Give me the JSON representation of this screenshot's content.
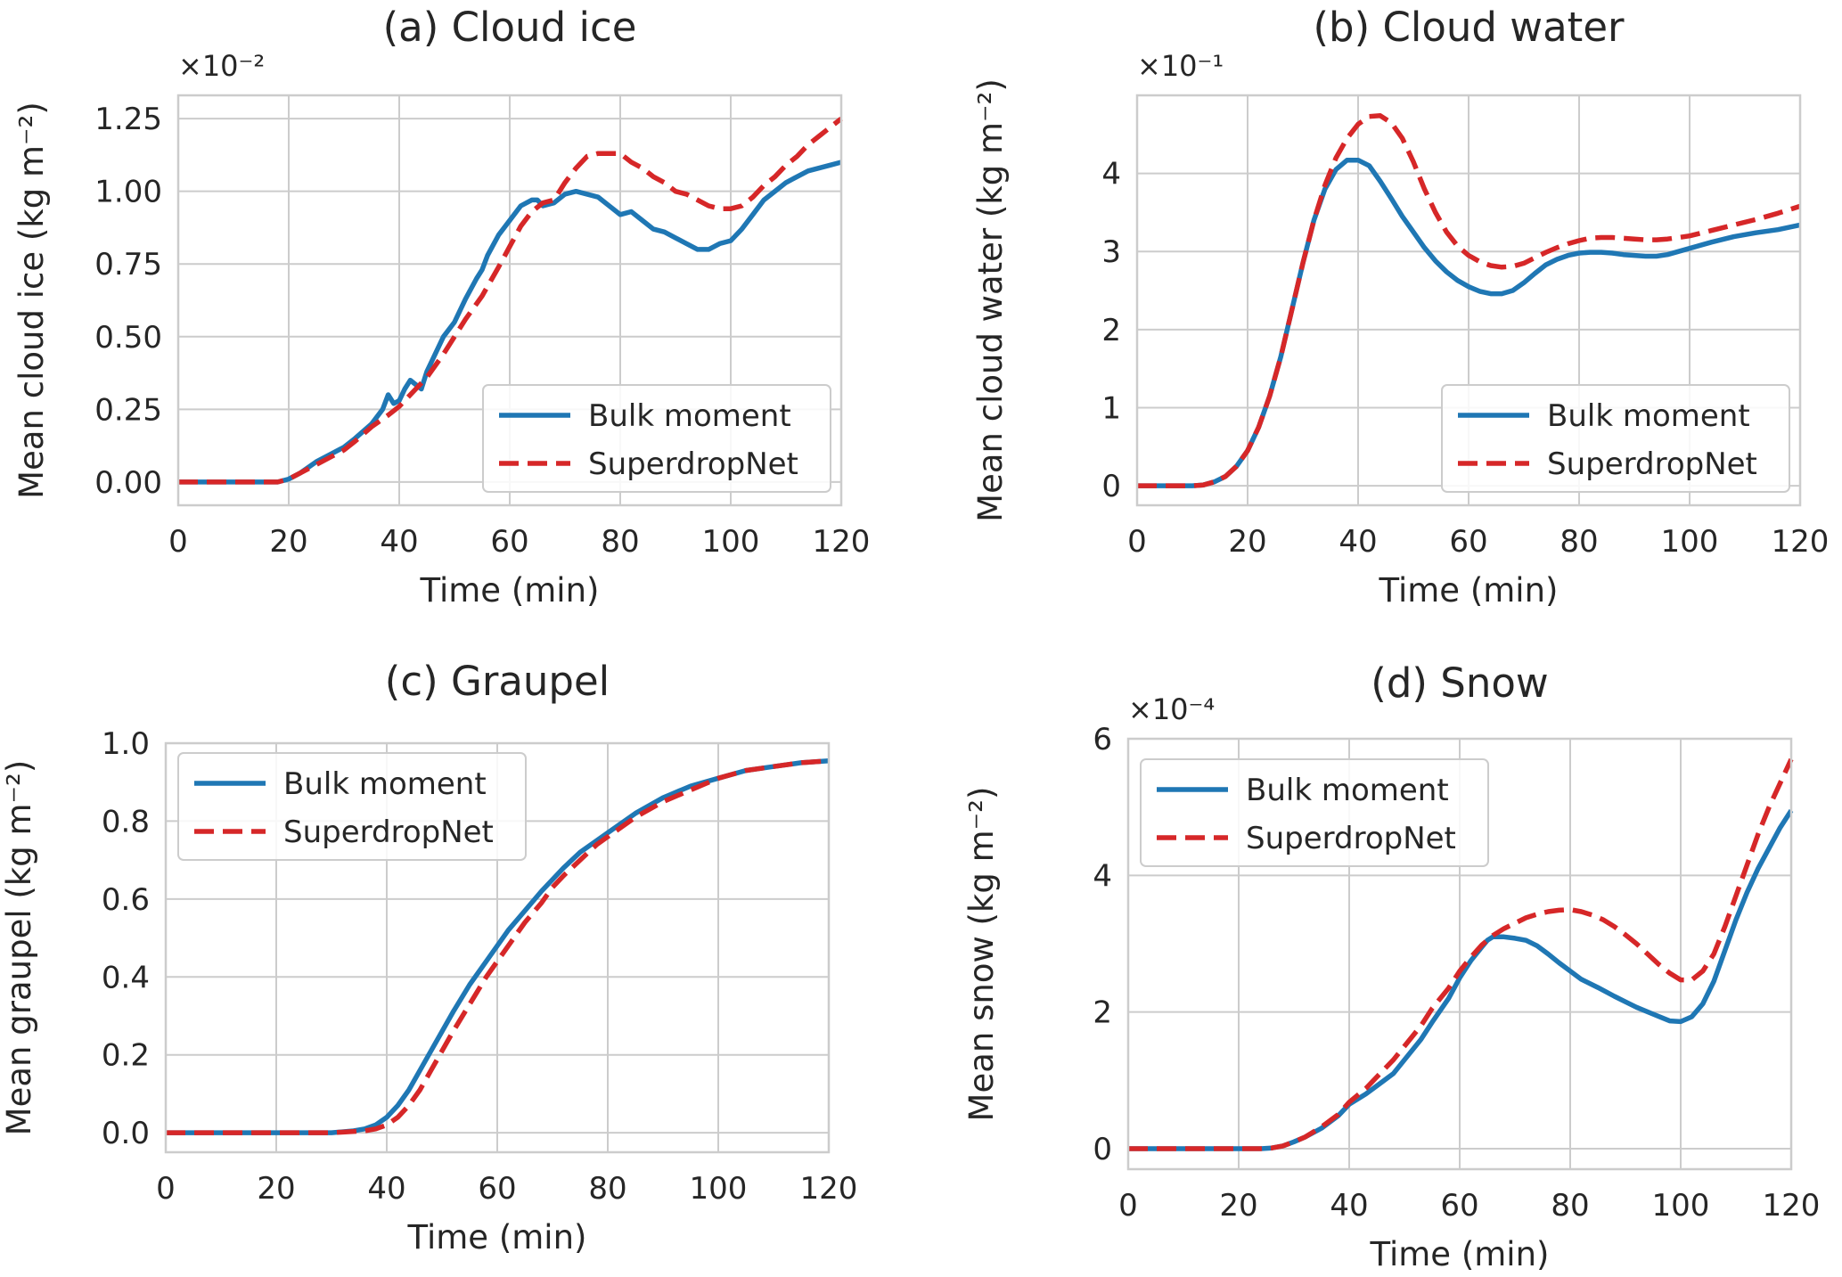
{
  "chart_data": [
    {
      "type": "line",
      "title": "(a) Cloud ice",
      "xlabel": "Time (min)",
      "ylabel": "Mean cloud ice (kg m⁻²)",
      "exponent_label": "×10⁻²",
      "xlim": [
        0,
        120
      ],
      "ylim": [
        -0.08,
        1.33
      ],
      "xticks": [
        0,
        20,
        40,
        60,
        80,
        100,
        120
      ],
      "xtick_labels": [
        "0",
        "20",
        "40",
        "60",
        "80",
        "100",
        "120"
      ],
      "yticks": [
        0,
        0.25,
        0.5,
        0.75,
        1.0,
        1.25
      ],
      "ytick_labels": [
        "0.00",
        "0.25",
        "0.50",
        "0.75",
        "1.00",
        "1.25"
      ],
      "grid": true,
      "legend_position": "lower-right",
      "series": [
        {
          "name": "Bulk moment",
          "style": "solid",
          "color": "#1f77b4",
          "x": [
            0,
            10,
            18,
            20,
            22,
            25,
            28,
            30,
            32,
            35,
            37,
            38,
            39,
            40,
            41,
            42,
            44,
            45,
            46,
            48,
            50,
            52,
            54,
            55,
            56,
            58,
            60,
            62,
            64,
            65,
            66,
            68,
            70,
            72,
            74,
            76,
            78,
            80,
            82,
            84,
            86,
            88,
            90,
            92,
            94,
            96,
            98,
            100,
            102,
            104,
            106,
            108,
            110,
            112,
            114,
            116,
            118,
            120
          ],
          "y": [
            0,
            0,
            0,
            0.01,
            0.03,
            0.07,
            0.1,
            0.12,
            0.15,
            0.2,
            0.25,
            0.3,
            0.27,
            0.28,
            0.32,
            0.35,
            0.32,
            0.38,
            0.42,
            0.5,
            0.55,
            0.63,
            0.7,
            0.73,
            0.78,
            0.85,
            0.9,
            0.95,
            0.97,
            0.97,
            0.95,
            0.96,
            0.99,
            1.0,
            0.99,
            0.98,
            0.95,
            0.92,
            0.93,
            0.9,
            0.87,
            0.86,
            0.84,
            0.82,
            0.8,
            0.8,
            0.82,
            0.83,
            0.87,
            0.92,
            0.97,
            1.0,
            1.03,
            1.05,
            1.07,
            1.08,
            1.09,
            1.1
          ]
        },
        {
          "name": "SuperdropNet",
          "style": "dashed",
          "color": "#d62728",
          "x": [
            0,
            10,
            18,
            20,
            22,
            25,
            28,
            30,
            32,
            35,
            38,
            40,
            42,
            45,
            48,
            50,
            52,
            55,
            58,
            60,
            62,
            64,
            66,
            68,
            70,
            72,
            74,
            76,
            78,
            80,
            82,
            84,
            86,
            88,
            90,
            92,
            94,
            96,
            98,
            100,
            102,
            104,
            106,
            108,
            110,
            112,
            114,
            116,
            118,
            120
          ],
          "y": [
            0,
            0,
            0,
            0.01,
            0.03,
            0.06,
            0.09,
            0.11,
            0.14,
            0.19,
            0.23,
            0.26,
            0.3,
            0.36,
            0.44,
            0.5,
            0.56,
            0.64,
            0.74,
            0.81,
            0.88,
            0.93,
            0.96,
            0.97,
            1.03,
            1.08,
            1.12,
            1.13,
            1.13,
            1.13,
            1.1,
            1.08,
            1.05,
            1.03,
            1.0,
            0.99,
            0.97,
            0.95,
            0.94,
            0.94,
            0.95,
            0.98,
            1.02,
            1.05,
            1.09,
            1.12,
            1.16,
            1.19,
            1.22,
            1.25
          ]
        }
      ]
    },
    {
      "type": "line",
      "title": "(b) Cloud water",
      "xlabel": "Time (min)",
      "ylabel": "Mean cloud water (kg m⁻²)",
      "exponent_label": "×10⁻¹",
      "xlim": [
        0,
        120
      ],
      "ylim": [
        -0.25,
        5.0
      ],
      "xticks": [
        0,
        20,
        40,
        60,
        80,
        100,
        120
      ],
      "xtick_labels": [
        "0",
        "20",
        "40",
        "60",
        "80",
        "100",
        "120"
      ],
      "yticks": [
        0,
        1,
        2,
        3,
        4
      ],
      "ytick_labels": [
        "0",
        "1",
        "2",
        "3",
        "4"
      ],
      "grid": true,
      "legend_position": "lower-right",
      "series": [
        {
          "name": "Bulk moment",
          "style": "solid",
          "color": "#1f77b4",
          "x": [
            0,
            10,
            12,
            14,
            16,
            18,
            20,
            22,
            24,
            26,
            28,
            30,
            32,
            34,
            36,
            38,
            40,
            42,
            44,
            46,
            48,
            50,
            52,
            54,
            56,
            58,
            60,
            62,
            64,
            66,
            68,
            70,
            72,
            74,
            76,
            78,
            80,
            82,
            84,
            86,
            88,
            90,
            92,
            94,
            96,
            98,
            100,
            104,
            108,
            112,
            116,
            120
          ],
          "y": [
            0,
            0,
            0.01,
            0.05,
            0.12,
            0.25,
            0.45,
            0.75,
            1.15,
            1.65,
            2.25,
            2.85,
            3.4,
            3.8,
            4.05,
            4.17,
            4.17,
            4.1,
            3.9,
            3.68,
            3.45,
            3.25,
            3.05,
            2.88,
            2.74,
            2.63,
            2.55,
            2.49,
            2.46,
            2.46,
            2.5,
            2.6,
            2.72,
            2.83,
            2.9,
            2.95,
            2.98,
            2.99,
            2.99,
            2.98,
            2.96,
            2.95,
            2.94,
            2.94,
            2.96,
            3.0,
            3.04,
            3.12,
            3.19,
            3.24,
            3.28,
            3.34
          ]
        },
        {
          "name": "SuperdropNet",
          "style": "dashed",
          "color": "#d62728",
          "x": [
            0,
            10,
            12,
            14,
            16,
            18,
            20,
            22,
            24,
            26,
            28,
            30,
            32,
            34,
            36,
            38,
            40,
            42,
            44,
            46,
            48,
            50,
            52,
            54,
            56,
            58,
            60,
            62,
            64,
            66,
            68,
            70,
            72,
            74,
            76,
            78,
            80,
            82,
            84,
            86,
            88,
            90,
            92,
            94,
            96,
            98,
            100,
            104,
            108,
            112,
            116,
            120
          ],
          "y": [
            0,
            0,
            0.01,
            0.05,
            0.12,
            0.25,
            0.45,
            0.75,
            1.15,
            1.65,
            2.25,
            2.85,
            3.4,
            3.85,
            4.2,
            4.45,
            4.63,
            4.73,
            4.74,
            4.65,
            4.45,
            4.15,
            3.8,
            3.5,
            3.25,
            3.07,
            2.95,
            2.87,
            2.82,
            2.8,
            2.81,
            2.85,
            2.92,
            2.99,
            3.05,
            3.1,
            3.14,
            3.17,
            3.18,
            3.18,
            3.17,
            3.16,
            3.15,
            3.15,
            3.16,
            3.18,
            3.2,
            3.27,
            3.34,
            3.41,
            3.49,
            3.58
          ]
        }
      ]
    },
    {
      "type": "line",
      "title": "(c) Graupel",
      "xlabel": "Time (min)",
      "ylabel": "Mean graupel (kg m⁻²)",
      "exponent_label": "",
      "xlim": [
        0,
        120
      ],
      "ylim": [
        -0.05,
        1.0
      ],
      "xticks": [
        0,
        20,
        40,
        60,
        80,
        100,
        120
      ],
      "xtick_labels": [
        "0",
        "20",
        "40",
        "60",
        "80",
        "100",
        "120"
      ],
      "yticks": [
        0,
        0.2,
        0.4,
        0.6,
        0.8,
        1.0
      ],
      "ytick_labels": [
        "0.0",
        "0.2",
        "0.4",
        "0.6",
        "0.8",
        "1.0"
      ],
      "grid": true,
      "legend_position": "upper-left",
      "series": [
        {
          "name": "Bulk moment",
          "style": "solid",
          "color": "#1f77b4",
          "x": [
            0,
            30,
            34,
            36,
            38,
            40,
            42,
            44,
            46,
            48,
            50,
            52,
            55,
            58,
            60,
            62,
            65,
            68,
            70,
            72,
            75,
            78,
            80,
            85,
            90,
            95,
            100,
            105,
            110,
            115,
            120
          ],
          "y": [
            0,
            0,
            0.005,
            0.01,
            0.02,
            0.04,
            0.07,
            0.11,
            0.16,
            0.21,
            0.26,
            0.31,
            0.38,
            0.44,
            0.48,
            0.52,
            0.57,
            0.62,
            0.65,
            0.68,
            0.72,
            0.75,
            0.77,
            0.82,
            0.86,
            0.89,
            0.91,
            0.93,
            0.94,
            0.95,
            0.955
          ]
        },
        {
          "name": "SuperdropNet",
          "style": "dashed",
          "color": "#d62728",
          "x": [
            0,
            30,
            36,
            38,
            40,
            42,
            44,
            46,
            48,
            50,
            52,
            55,
            58,
            60,
            62,
            65,
            68,
            70,
            72,
            75,
            78,
            80,
            85,
            90,
            95,
            100,
            105,
            110,
            115,
            120
          ],
          "y": [
            0,
            0,
            0.005,
            0.01,
            0.02,
            0.04,
            0.07,
            0.11,
            0.16,
            0.21,
            0.26,
            0.33,
            0.4,
            0.44,
            0.48,
            0.54,
            0.59,
            0.63,
            0.66,
            0.7,
            0.74,
            0.76,
            0.81,
            0.85,
            0.88,
            0.91,
            0.93,
            0.94,
            0.95,
            0.955
          ]
        }
      ]
    },
    {
      "type": "line",
      "title": "(d) Snow",
      "xlabel": "Time (min)",
      "ylabel": "Mean snow (kg m⁻²)",
      "exponent_label": "×10⁻⁴",
      "xlim": [
        0,
        120
      ],
      "ylim": [
        -0.3,
        6.0
      ],
      "xticks": [
        0,
        20,
        40,
        60,
        80,
        100,
        120
      ],
      "xtick_labels": [
        "0",
        "20",
        "40",
        "60",
        "80",
        "100",
        "120"
      ],
      "yticks": [
        0,
        2,
        4,
        6
      ],
      "ytick_labels": [
        "0",
        "2",
        "4",
        "6"
      ],
      "grid": true,
      "legend_position": "upper-left",
      "series": [
        {
          "name": "Bulk moment",
          "style": "solid",
          "color": "#1f77b4",
          "x": [
            0,
            20,
            24,
            26,
            28,
            30,
            32,
            35,
            38,
            40,
            43,
            45,
            48,
            50,
            53,
            55,
            58,
            60,
            62,
            64,
            65,
            66,
            68,
            70,
            72,
            74,
            76,
            78,
            80,
            82,
            85,
            88,
            90,
            92,
            95,
            98,
            100,
            102,
            104,
            106,
            108,
            110,
            112,
            114,
            116,
            118,
            120
          ],
          "y": [
            0,
            0,
            0,
            0.01,
            0.04,
            0.1,
            0.17,
            0.3,
            0.48,
            0.65,
            0.8,
            0.92,
            1.1,
            1.3,
            1.6,
            1.85,
            2.2,
            2.5,
            2.75,
            2.95,
            3.05,
            3.1,
            3.1,
            3.08,
            3.05,
            2.97,
            2.85,
            2.72,
            2.6,
            2.48,
            2.36,
            2.23,
            2.15,
            2.07,
            1.97,
            1.87,
            1.86,
            1.93,
            2.12,
            2.45,
            2.9,
            3.35,
            3.75,
            4.1,
            4.4,
            4.7,
            4.95
          ]
        },
        {
          "name": "SuperdropNet",
          "style": "dashed",
          "color": "#d62728",
          "x": [
            0,
            20,
            24,
            26,
            28,
            30,
            32,
            35,
            38,
            40,
            43,
            45,
            48,
            50,
            53,
            55,
            58,
            60,
            62,
            64,
            66,
            68,
            70,
            72,
            74,
            76,
            78,
            80,
            82,
            84,
            86,
            88,
            90,
            92,
            94,
            96,
            98,
            100,
            102,
            104,
            106,
            108,
            110,
            112,
            114,
            116,
            118,
            120
          ],
          "y": [
            0,
            0,
            0,
            0.01,
            0.04,
            0.1,
            0.17,
            0.32,
            0.5,
            0.68,
            0.88,
            1.05,
            1.3,
            1.5,
            1.8,
            2.05,
            2.35,
            2.6,
            2.8,
            2.98,
            3.12,
            3.22,
            3.3,
            3.38,
            3.43,
            3.47,
            3.49,
            3.5,
            3.47,
            3.42,
            3.35,
            3.25,
            3.13,
            3.0,
            2.85,
            2.7,
            2.57,
            2.47,
            2.47,
            2.6,
            2.85,
            3.25,
            3.7,
            4.15,
            4.6,
            5.0,
            5.35,
            5.7
          ]
        }
      ]
    }
  ]
}
